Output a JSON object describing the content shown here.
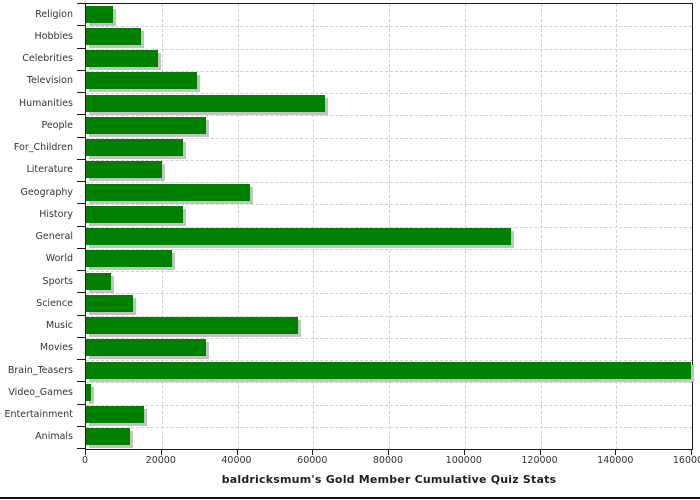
{
  "chart_data": {
    "type": "bar",
    "orientation": "horizontal",
    "title": "baldricksmum's Gold Member Cumulative Quiz Stats",
    "xlabel": "",
    "ylabel": "",
    "categories": [
      "Religion",
      "Hobbies",
      "Celebrities",
      "Television",
      "Humanities",
      "People",
      "For_Children",
      "Literature",
      "Geography",
      "History",
      "General",
      "World",
      "Sports",
      "Science",
      "Music",
      "Movies",
      "Brain_Teasers",
      "Video_Games",
      "Entertainment",
      "Animals"
    ],
    "values": [
      7100,
      14500,
      19100,
      29200,
      63100,
      31800,
      25700,
      20100,
      43300,
      25600,
      112100,
      22600,
      6700,
      12400,
      56000,
      31600,
      159700,
      1200,
      15300,
      11700
    ],
    "xlim": [
      0,
      160000
    ],
    "xticks": [
      0,
      20000,
      40000,
      60000,
      80000,
      100000,
      120000,
      140000,
      160000
    ],
    "grid": "dashed, both axes",
    "legend": "none",
    "colors": {
      "bar": "#008000",
      "bar_shadow": "#c2c2c2",
      "gridline": "#cfcfcf",
      "axis": "#1a1a1a",
      "tick_label": "#333333",
      "title_text": "#1f1f1f",
      "background": "#ffffff",
      "bottom_rule": "#111111"
    }
  }
}
